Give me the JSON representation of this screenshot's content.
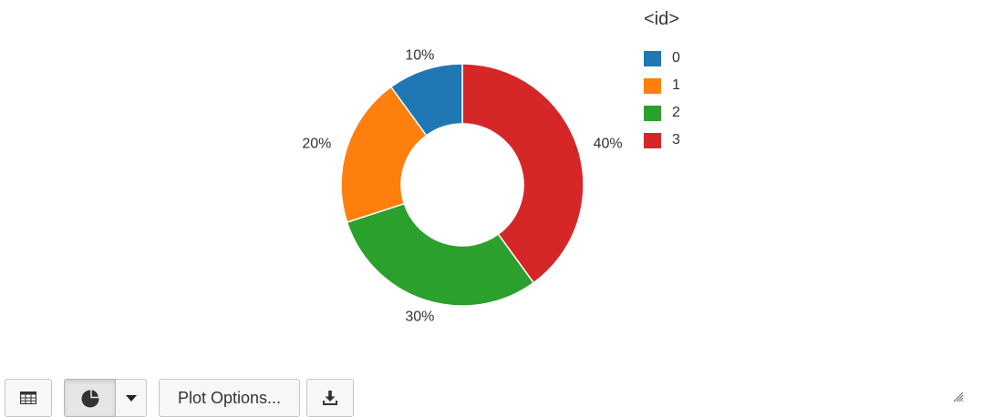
{
  "chart_data": {
    "type": "pie",
    "donut": true,
    "legend_title": "<id>",
    "legend_placement": "right",
    "slices": [
      {
        "label": "0",
        "value": 10,
        "percent_label": "10%",
        "color": "#1f77b4"
      },
      {
        "label": "1",
        "value": 20,
        "percent_label": "20%",
        "color": "#ff7f0e"
      },
      {
        "label": "2",
        "value": 30,
        "percent_label": "30%",
        "color": "#2ca02c"
      },
      {
        "label": "3",
        "value": 40,
        "percent_label": "40%",
        "color": "#d62728"
      }
    ]
  },
  "toolbar": {
    "table_icon": "table-icon",
    "pie_icon": "pie-chart-icon",
    "caret_icon": "caret-down-icon",
    "plot_options_label": "Plot Options...",
    "download_icon": "download-icon"
  },
  "resize_icon": "resize-grip-icon"
}
